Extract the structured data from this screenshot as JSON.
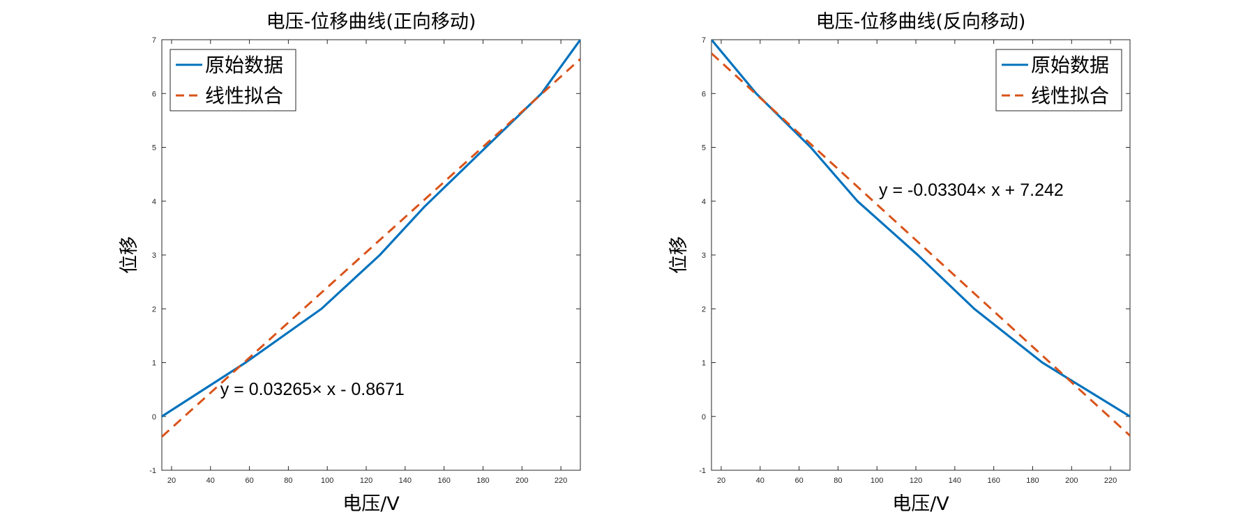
{
  "chart_data": [
    {
      "type": "line",
      "title": "电压-位移曲线(正向移动)",
      "xlabel": "电压/V",
      "ylabel": "位移",
      "xlim": [
        15,
        230
      ],
      "ylim": [
        -1,
        7
      ],
      "xticks": [
        20,
        40,
        60,
        80,
        100,
        120,
        140,
        160,
        180,
        200,
        220
      ],
      "yticks": [
        -1,
        0,
        1,
        2,
        3,
        4,
        5,
        6,
        7
      ],
      "legend_position": "top-left",
      "annotation": {
        "text": "y = 0.03265× x - 0.8671",
        "x": 45,
        "y": 0.4
      },
      "series": [
        {
          "name": "原始数据",
          "style": "solid",
          "color": "#0072BD",
          "x": [
            15,
            58,
            97,
            127,
            150,
            180,
            210,
            230
          ],
          "y": [
            0,
            1,
            2,
            3,
            3.9,
            4.95,
            6,
            7
          ]
        },
        {
          "name": "线性拟合",
          "style": "dashed",
          "color": "#D95319",
          "x": [
            15,
            230
          ],
          "y": [
            -0.377,
            6.642
          ]
        }
      ]
    },
    {
      "type": "line",
      "title": "电压-位移曲线(反向移动)",
      "xlabel": "电压/V",
      "ylabel": "位移",
      "xlim": [
        15,
        230
      ],
      "ylim": [
        -1,
        7
      ],
      "xticks": [
        20,
        40,
        60,
        80,
        100,
        120,
        140,
        160,
        180,
        200,
        220
      ],
      "yticks": [
        -1,
        0,
        1,
        2,
        3,
        4,
        5,
        6,
        7
      ],
      "legend_position": "top-right",
      "annotation": {
        "text": "y = -0.03304× x + 7.242",
        "x": 101,
        "y": 4.1
      },
      "series": [
        {
          "name": "原始数据",
          "style": "solid",
          "color": "#0072BD",
          "x": [
            15,
            38,
            66,
            90,
            121,
            150,
            185,
            230
          ],
          "y": [
            7,
            6,
            5,
            4,
            3,
            2,
            1,
            0
          ]
        },
        {
          "name": "线性拟合",
          "style": "dashed",
          "color": "#D95319",
          "x": [
            15,
            230
          ],
          "y": [
            6.746,
            -0.357
          ]
        }
      ]
    }
  ]
}
